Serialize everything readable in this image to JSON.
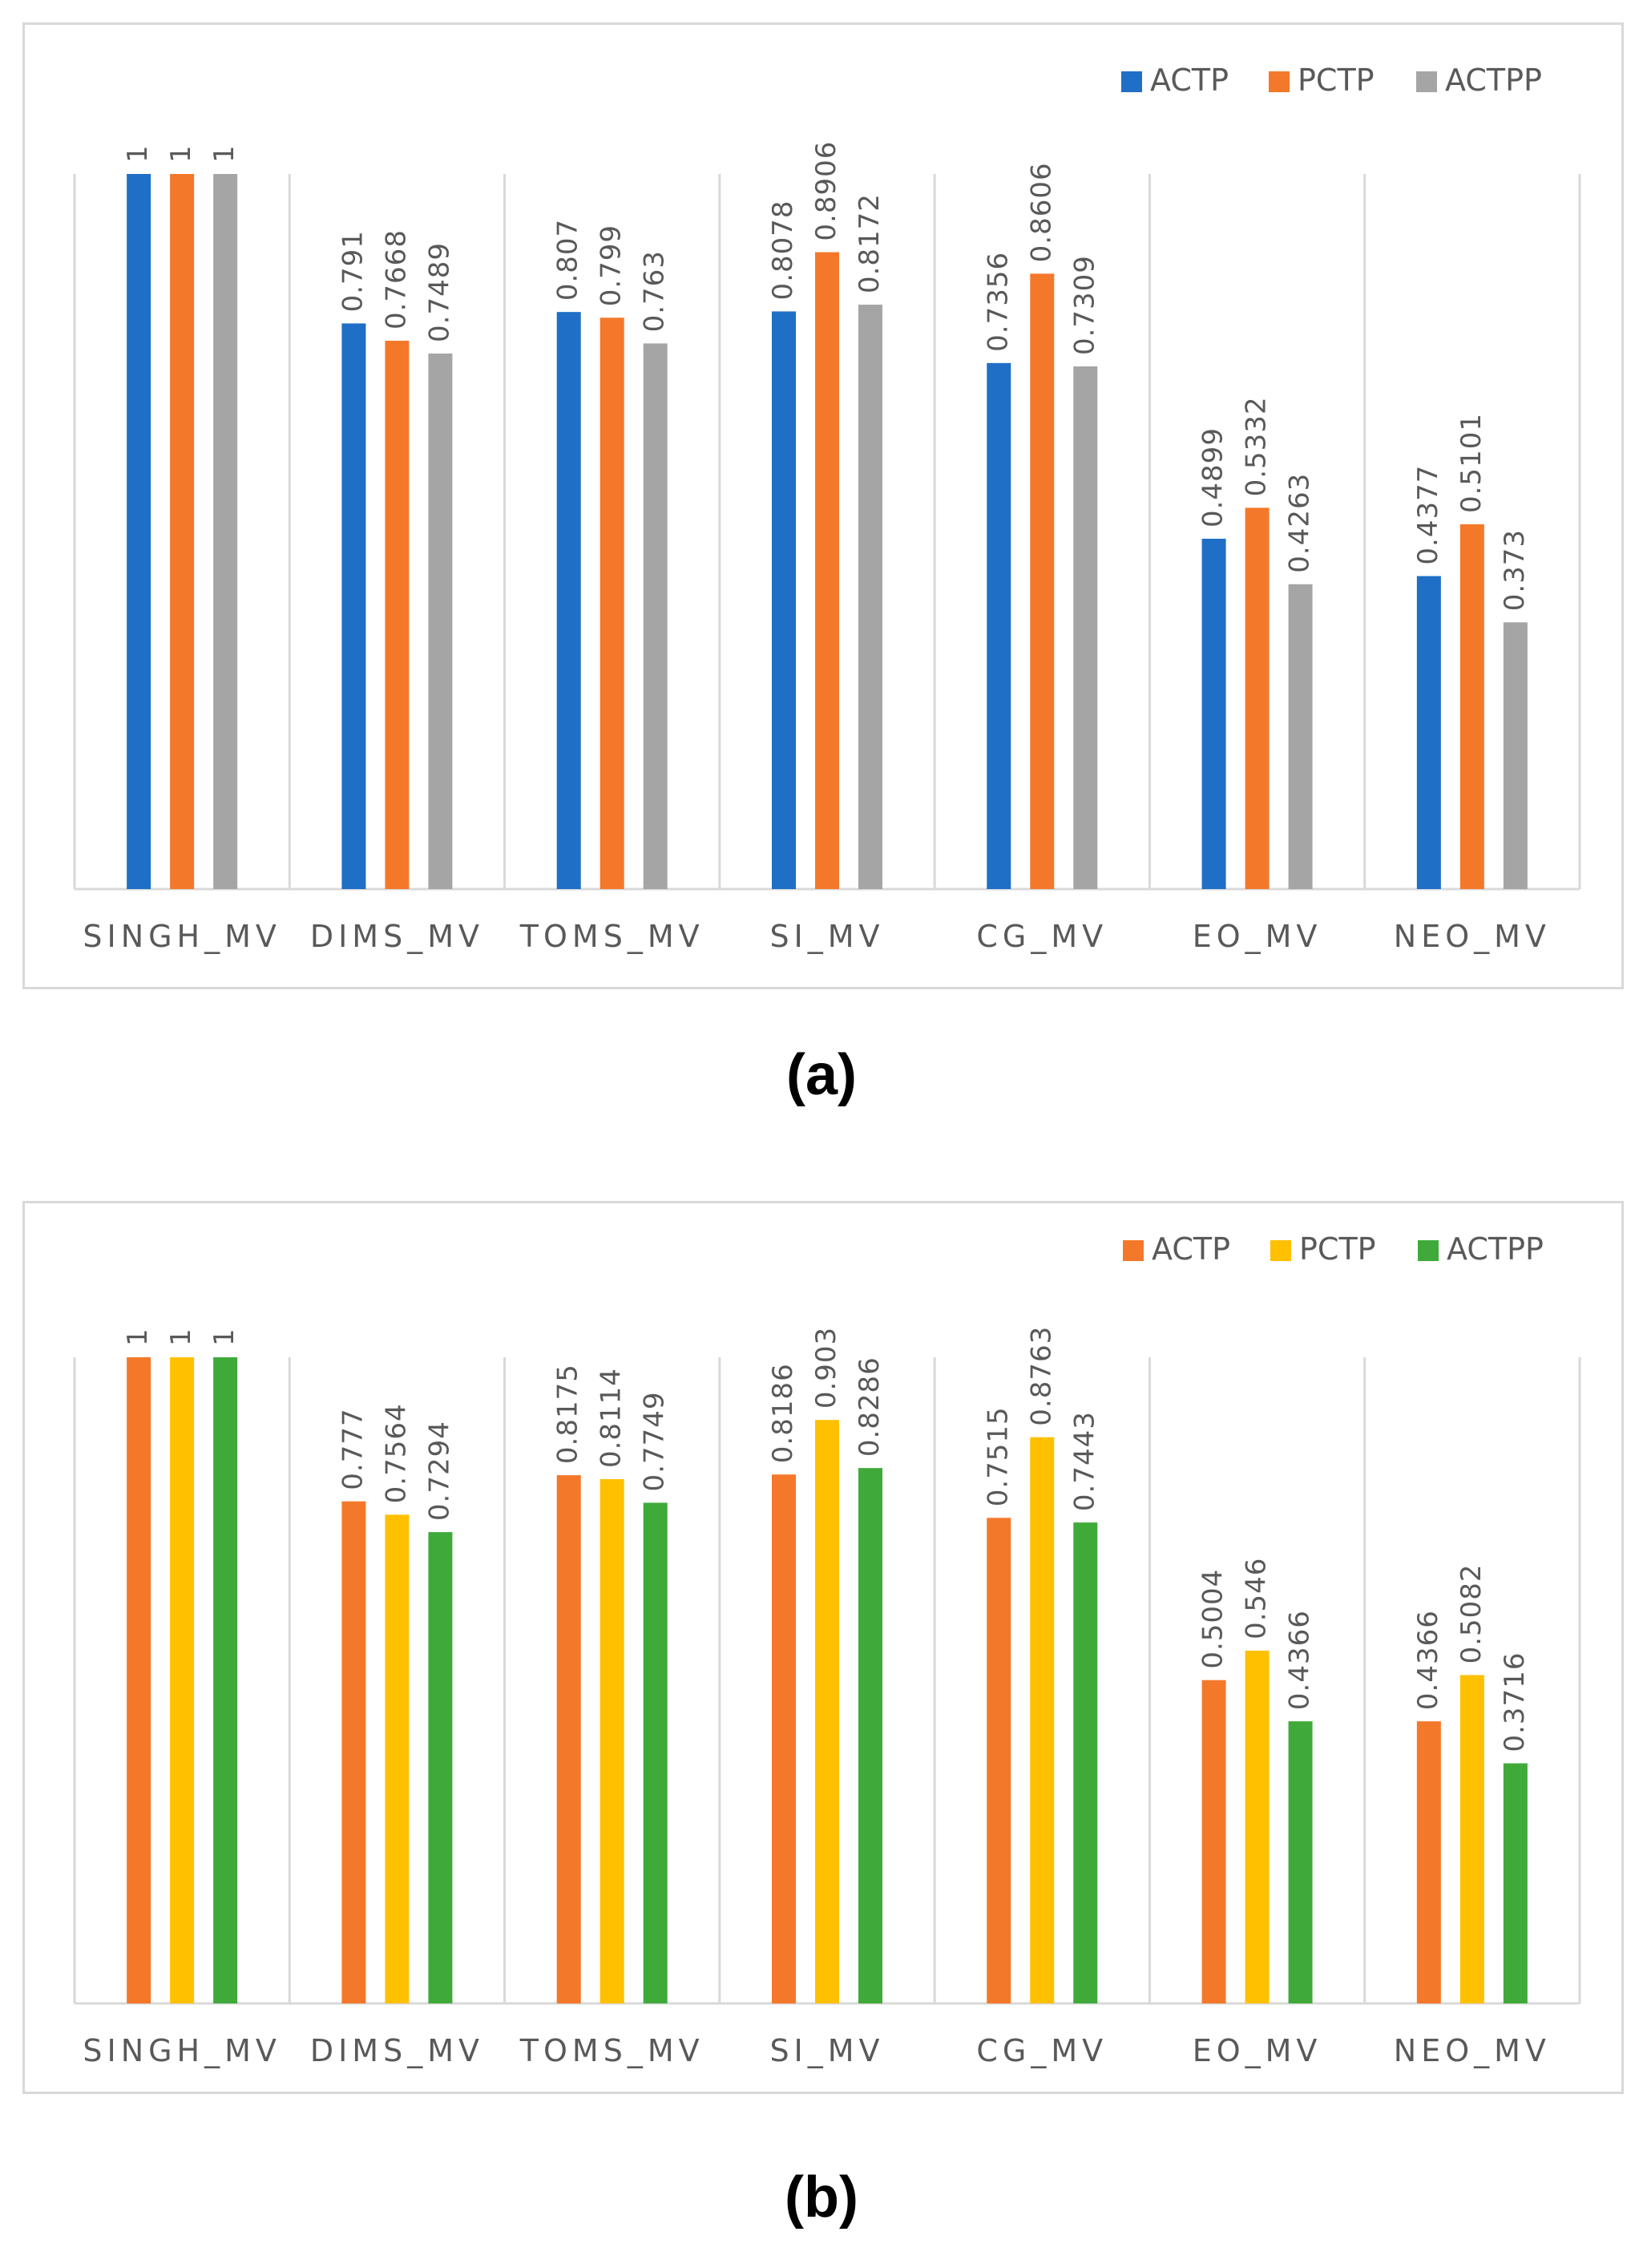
{
  "chart_data": [
    {
      "type": "bar",
      "caption": "(a)",
      "categories": [
        "SINGH_MV",
        "DIMS_MV",
        "TOMS_MV",
        "SI_MV",
        "CG_MV",
        "EO_MV",
        "NEO_MV"
      ],
      "series": [
        {
          "name": "ACTP",
          "color": "#1f6fc6",
          "values": [
            1,
            0.791,
            0.807,
            0.8078,
            0.7356,
            0.4899,
            0.4377
          ],
          "labels": [
            "1",
            "0.791",
            "0.807",
            "0.8078",
            "0.7356",
            "0.4899",
            "0.4377"
          ]
        },
        {
          "name": "PCTP",
          "color": "#f4782a",
          "values": [
            1,
            0.7668,
            0.799,
            0.8906,
            0.8606,
            0.5332,
            0.5101
          ],
          "labels": [
            "1",
            "0.7668",
            "0.799",
            "0.8906",
            "0.8606",
            "0.5332",
            "0.5101"
          ]
        },
        {
          "name": "ACTPP",
          "color": "#a5a5a5",
          "values": [
            1,
            0.7489,
            0.763,
            0.8172,
            0.7309,
            0.4263,
            0.373
          ],
          "labels": [
            "1",
            "0.7489",
            "0.763",
            "0.8172",
            "0.7309",
            "0.4263",
            "0.373"
          ]
        }
      ],
      "ylim": [
        0,
        1
      ],
      "grid": false,
      "legend": "top-right",
      "title": "",
      "xlabel": "",
      "ylabel": ""
    },
    {
      "type": "bar",
      "caption": "(b)",
      "categories": [
        "SINGH_MV",
        "DIMS_MV",
        "TOMS_MV",
        "SI_MV",
        "CG_MV",
        "EO_MV",
        "NEO_MV"
      ],
      "series": [
        {
          "name": "ACTP",
          "color": "#f4782a",
          "values": [
            1,
            0.777,
            0.8175,
            0.8186,
            0.7515,
            0.5004,
            0.4366
          ],
          "labels": [
            "1",
            "0.777",
            "0.8175",
            "0.8186",
            "0.7515",
            "0.5004",
            "0.4366"
          ]
        },
        {
          "name": "PCTP",
          "color": "#ffc000",
          "values": [
            1,
            0.7564,
            0.8114,
            0.903,
            0.8763,
            0.546,
            0.5082
          ],
          "labels": [
            "1",
            "0.7564",
            "0.8114",
            "0.903",
            "0.8763",
            "0.546",
            "0.5082"
          ]
        },
        {
          "name": "ACTPP",
          "color": "#3faa3a",
          "values": [
            1,
            0.7294,
            0.7749,
            0.8286,
            0.7443,
            0.4366,
            0.3716
          ],
          "labels": [
            "1",
            "0.7294",
            "0.7749",
            "0.8286",
            "0.7443",
            "0.4366",
            "0.3716"
          ]
        }
      ],
      "ylim": [
        0,
        1
      ],
      "grid": false,
      "legend": "top-right",
      "title": "",
      "xlabel": "",
      "ylabel": ""
    }
  ]
}
